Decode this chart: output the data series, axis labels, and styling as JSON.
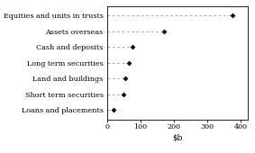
{
  "categories": [
    "Loans and placements",
    "Short term securities",
    "Land and buildings",
    "Long term securities",
    "Cash and deposits",
    "Assets overseas",
    "Equities and units in trusts"
  ],
  "values": [
    20,
    50,
    55,
    65,
    75,
    170,
    375
  ],
  "xlim": [
    0,
    420
  ],
  "xticks": [
    0,
    100,
    200,
    300,
    400
  ],
  "xtick_labels": [
    "0",
    "100",
    "200",
    "300",
    "400"
  ],
  "marker_color": "#111111",
  "line_color": "#aaaaaa",
  "background_color": "#ffffff",
  "label_fontsize": 5.8,
  "tick_fontsize": 5.8,
  "xlabel_fontsize": 6.5
}
